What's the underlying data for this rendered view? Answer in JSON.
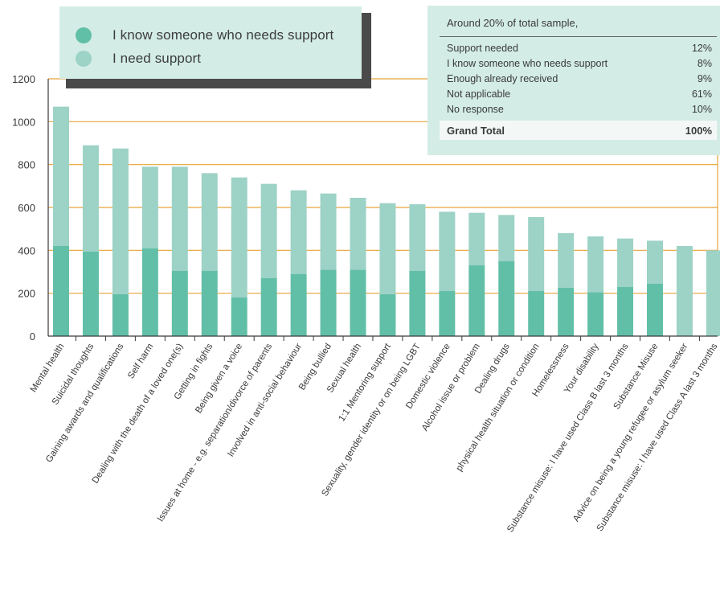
{
  "colors": {
    "know_someone": "#62bfa7",
    "need_support": "#9dd2c6",
    "grid": "#e8a33a",
    "axis": "#3a3a3a",
    "panel_bg": "#d3ece6"
  },
  "legend": {
    "items": [
      {
        "label": "I know someone who needs support",
        "color": "#62bfa7"
      },
      {
        "label": "I need support",
        "color": "#9dd2c6"
      }
    ]
  },
  "summary": {
    "title": "Around 20% of total sample,",
    "rows": [
      {
        "label": "Support needed",
        "value": "12%"
      },
      {
        "label": "I know someone who needs support",
        "value": "8%"
      },
      {
        "label": "Enough already received",
        "value": "9%"
      },
      {
        "label": "Not applicable",
        "value": "61%"
      },
      {
        "label": "No response",
        "value": "10%"
      }
    ],
    "total_label": "Grand Total",
    "total_value": "100%"
  },
  "chart_data": {
    "type": "bar",
    "stacked": true,
    "ylim": [
      0,
      1200
    ],
    "yticks": [
      0,
      200,
      400,
      600,
      800,
      1000,
      1200
    ],
    "grid": true,
    "legend_position": "top-left",
    "categories": [
      "Mental health",
      "Suicidal thoughts",
      "Gaining awards and qualifications",
      "Self harm",
      "Dealing with the death of a loved one(s)",
      "Getting in fights",
      "Being given a voice",
      "Issues at home - e.g. separation/divorce of parents",
      "Involved in anti-social behaviour",
      "Being bullied",
      "Sexual health",
      "1:1 Mentoring support",
      "Sexuality, gender identity or on being LGBT",
      "Domestic violence",
      "Alcohol issue or problem",
      "Dealing drugs",
      "physical health situation or condition",
      "Homelessness",
      "Your disability",
      "Substance misuse: I have used Class B last 3 months",
      "Substance Misuse",
      "Advice on being a young refugee or asylum seeker",
      "Substance misuse: I have used Class A last 3 months"
    ],
    "series": [
      {
        "name": "I know someone who needs support",
        "values": [
          420,
          395,
          195,
          410,
          305,
          305,
          180,
          270,
          290,
          310,
          310,
          195,
          305,
          210,
          330,
          350,
          210,
          225,
          205,
          230,
          245,
          0,
          0
        ]
      },
      {
        "name": "I need support",
        "values": [
          650,
          495,
          680,
          380,
          485,
          455,
          560,
          440,
          390,
          355,
          335,
          425,
          310,
          370,
          245,
          215,
          345,
          255,
          260,
          225,
          200,
          420,
          400
        ]
      }
    ]
  }
}
